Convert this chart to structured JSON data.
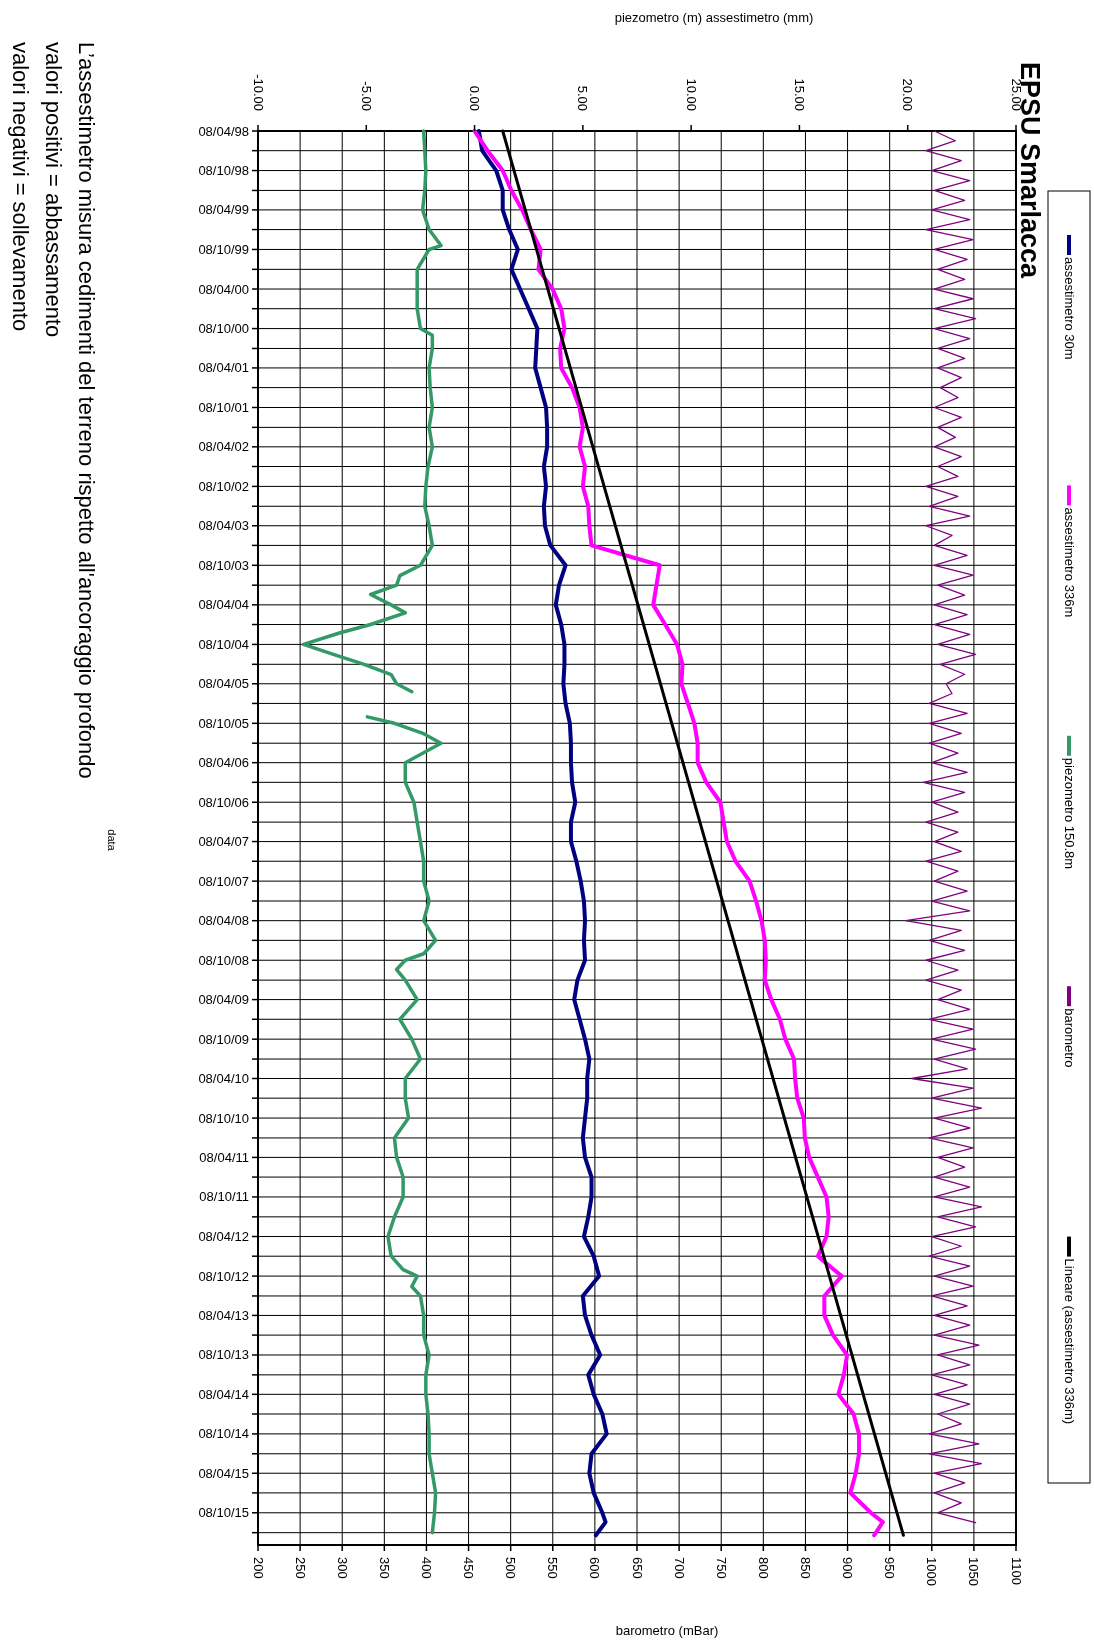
{
  "chart_data": {
    "type": "line",
    "orientation": "horizontal",
    "title": "EPSU Smarlacca",
    "x2label": "piezometro (m) assestimetro (mm)",
    "xlabel": "barometro (mBar)",
    "annotations": [
      "L’assestimetro misura cedimenti  del terreno rispetto all'ancoraggio  profondo",
      "valori positivi = abbassamento",
      "valori negativi = sollevamento",
      "data"
    ],
    "ylim": [
      "2016-03-05",
      "1998-04-08"
    ],
    "yticks": [
      {
        "value": "1998-04-08",
        "label": "08/04/98"
      },
      {
        "value": "1998-07-08",
        "label": null
      },
      {
        "value": "1998-10-08",
        "label": "08/10/98"
      },
      {
        "value": "1999-01-08",
        "label": null
      },
      {
        "value": "1999-04-08",
        "label": "08/04/99"
      },
      {
        "value": "1999-07-08",
        "label": null
      },
      {
        "value": "1999-10-08",
        "label": "08/10/99"
      },
      {
        "value": "2000-01-08",
        "label": null
      },
      {
        "value": "2000-04-08",
        "label": "08/04/00"
      },
      {
        "value": "2000-07-08",
        "label": null
      },
      {
        "value": "2000-10-08",
        "label": "08/10/00"
      },
      {
        "value": "2001-01-08",
        "label": null
      },
      {
        "value": "2001-04-08",
        "label": "08/04/01"
      },
      {
        "value": "2001-07-08",
        "label": null
      },
      {
        "value": "2001-10-08",
        "label": "08/10/01"
      },
      {
        "value": "2002-01-08",
        "label": null
      },
      {
        "value": "2002-04-08",
        "label": "08/04/02"
      },
      {
        "value": "2002-07-08",
        "label": null
      },
      {
        "value": "2002-10-08",
        "label": "08/10/02"
      },
      {
        "value": "2003-01-08",
        "label": null
      },
      {
        "value": "2003-04-08",
        "label": "08/04/03"
      },
      {
        "value": "2003-07-08",
        "label": null
      },
      {
        "value": "2003-10-08",
        "label": "08/10/03"
      },
      {
        "value": "2004-01-08",
        "label": null
      },
      {
        "value": "2004-04-08",
        "label": "08/04/04"
      },
      {
        "value": "2004-07-08",
        "label": null
      },
      {
        "value": "2004-10-08",
        "label": "08/10/04"
      },
      {
        "value": "2005-01-08",
        "label": null
      },
      {
        "value": "2005-04-08",
        "label": "08/04/05"
      },
      {
        "value": "2005-07-08",
        "label": null
      },
      {
        "value": "2005-10-08",
        "label": "08/10/05"
      },
      {
        "value": "2006-01-08",
        "label": null
      },
      {
        "value": "2006-04-08",
        "label": "08/04/06"
      },
      {
        "value": "2006-07-08",
        "label": null
      },
      {
        "value": "2006-10-08",
        "label": "08/10/06"
      },
      {
        "value": "2007-01-08",
        "label": null
      },
      {
        "value": "2007-04-08",
        "label": "08/04/07"
      },
      {
        "value": "2007-07-08",
        "label": null
      },
      {
        "value": "2007-10-08",
        "label": "08/10/07"
      },
      {
        "value": "2008-01-08",
        "label": null
      },
      {
        "value": "2008-04-08",
        "label": "08/04/08"
      },
      {
        "value": "2008-07-08",
        "label": null
      },
      {
        "value": "2008-10-08",
        "label": "08/10/08"
      },
      {
        "value": "2009-01-08",
        "label": null
      },
      {
        "value": "2009-04-08",
        "label": "08/04/09"
      },
      {
        "value": "2009-07-08",
        "label": null
      },
      {
        "value": "2009-10-08",
        "label": "08/10/09"
      },
      {
        "value": "2010-01-08",
        "label": null
      },
      {
        "value": "2010-04-08",
        "label": "08/04/10"
      },
      {
        "value": "2010-07-08",
        "label": null
      },
      {
        "value": "2010-10-08",
        "label": "08/10/10"
      },
      {
        "value": "2011-01-08",
        "label": null
      },
      {
        "value": "2011-04-08",
        "label": "08/04/11"
      },
      {
        "value": "2011-07-08",
        "label": null
      },
      {
        "value": "2011-10-08",
        "label": "08/10/11"
      },
      {
        "value": "2012-01-08",
        "label": null
      },
      {
        "value": "2012-04-08",
        "label": "08/04/12"
      },
      {
        "value": "2012-07-08",
        "label": null
      },
      {
        "value": "2012-10-08",
        "label": "08/10/12"
      },
      {
        "value": "2013-01-08",
        "label": null
      },
      {
        "value": "2013-04-08",
        "label": "08/04/13"
      },
      {
        "value": "2013-07-08",
        "label": null
      },
      {
        "value": "2013-10-08",
        "label": "08/10/13"
      },
      {
        "value": "2014-01-08",
        "label": null
      },
      {
        "value": "2014-04-08",
        "label": "08/04/14"
      },
      {
        "value": "2014-07-08",
        "label": null
      },
      {
        "value": "2014-10-08",
        "label": "08/10/14"
      },
      {
        "value": "2015-01-08",
        "label": null
      },
      {
        "value": "2015-04-08",
        "label": "08/04/15"
      },
      {
        "value": "2015-07-08",
        "label": null
      },
      {
        "value": "2015-10-08",
        "label": "08/10/15"
      },
      {
        "value": "2016-01-08",
        "label": null
      }
    ],
    "x2lim": [
      -10,
      25
    ],
    "x2ticks": [
      {
        "value": -10,
        "label": "-10.00"
      },
      {
        "value": -5,
        "label": "-5.00"
      },
      {
        "value": 0,
        "label": "0.00"
      },
      {
        "value": 5,
        "label": "5.00"
      },
      {
        "value": 10,
        "label": "10.00"
      },
      {
        "value": 15,
        "label": "15.00"
      },
      {
        "value": 20,
        "label": "20.00"
      },
      {
        "value": 25,
        "label": "25.00"
      }
    ],
    "xlim": [
      200,
      1100
    ],
    "xticks": [
      200,
      250,
      300,
      350,
      400,
      450,
      500,
      550,
      600,
      650,
      700,
      750,
      800,
      850,
      900,
      950,
      1000,
      1050,
      1100
    ],
    "grid": true,
    "legend": "top",
    "marker": "none",
    "line_style": "solid",
    "x": [
      "1998-04-08",
      "1998-07-08",
      "1998-10-08",
      "1999-01-08",
      "1999-04-08",
      "1999-07-08",
      "1999-10-08",
      "2000-01-08",
      "2000-04-08",
      "2000-07-08",
      "2000-10-08",
      "2001-01-08",
      "2001-04-08",
      "2001-07-08",
      "2001-10-08",
      "2002-01-08",
      "2002-04-08",
      "2002-07-08",
      "2002-10-08",
      "2003-01-08",
      "2003-04-08",
      "2003-07-08",
      "2003-10-08",
      "2004-01-08",
      "2004-04-08",
      "2004-07-08",
      "2004-10-08",
      "2005-01-08",
      "2005-04-08",
      "2005-07-08",
      "2005-10-08",
      "2006-01-08",
      "2006-04-08",
      "2006-07-08",
      "2006-10-08",
      "2007-01-08",
      "2007-04-08",
      "2007-07-08",
      "2007-10-08",
      "2008-01-08",
      "2008-04-08",
      "2008-07-08",
      "2008-10-08",
      "2009-01-08",
      "2009-04-08",
      "2009-07-08",
      "2009-10-08",
      "2010-01-08",
      "2010-04-08",
      "2010-07-08",
      "2010-10-08",
      "2011-01-08",
      "2011-04-08",
      "2011-07-08",
      "2011-10-08",
      "2012-01-08",
      "2012-04-08",
      "2012-07-08",
      "2012-10-08",
      "2013-01-08",
      "2013-04-08",
      "2013-07-08",
      "2013-10-08",
      "2014-01-08",
      "2014-04-08",
      "2014-07-08",
      "2014-10-08",
      "2015-01-08",
      "2015-04-08",
      "2015-07-08",
      "2015-10-08",
      "2015-11-20",
      "2016-01-20"
    ],
    "series": [
      {
        "name": "assestimetro 30m",
        "color": "#000080",
        "axis": "x2",
        "values": [
          0.2,
          0.35,
          1.0,
          1.3,
          1.3,
          1.6,
          2.0,
          1.7,
          2.1,
          2.5,
          2.9,
          2.85,
          2.8,
          3.05,
          3.3,
          3.35,
          3.35,
          3.2,
          3.3,
          3.2,
          3.25,
          3.5,
          4.2,
          3.9,
          3.75,
          4.0,
          4.15,
          4.15,
          4.1,
          4.2,
          4.4,
          4.45,
          4.45,
          4.5,
          4.65,
          4.45,
          4.45,
          4.7,
          4.9,
          5.05,
          5.1,
          5.05,
          5.1,
          4.75,
          4.6,
          4.85,
          5.1,
          5.3,
          5.2,
          5.2,
          5.1,
          5.0,
          5.1,
          5.4,
          5.4,
          5.25,
          5.05,
          5.5,
          5.75,
          5.0,
          5.1,
          5.4,
          5.8,
          5.25,
          5.5,
          5.9,
          6.1,
          5.4,
          5.3,
          5.5,
          5.9,
          6.05,
          5.6
        ]
      },
      {
        "name": "assestimetro 336m",
        "color": "#ff00ff",
        "axis": "x2",
        "values": [
          0.0,
          0.6,
          1.3,
          1.7,
          2.2,
          2.6,
          3.05,
          2.95,
          3.6,
          4.0,
          4.15,
          3.95,
          4.0,
          4.5,
          4.85,
          5.0,
          4.85,
          5.1,
          5.0,
          5.25,
          5.3,
          5.4,
          8.55,
          8.4,
          8.25,
          8.8,
          9.35,
          9.6,
          9.55,
          9.85,
          10.15,
          10.3,
          10.3,
          10.7,
          11.35,
          11.5,
          11.65,
          12.05,
          12.7,
          13.0,
          13.25,
          13.4,
          13.45,
          13.4,
          13.7,
          14.1,
          14.35,
          14.75,
          14.8,
          14.9,
          15.2,
          15.25,
          15.45,
          15.85,
          16.25,
          16.35,
          16.25,
          15.85,
          16.95,
          16.15,
          16.15,
          16.55,
          17.2,
          17.05,
          16.8,
          17.5,
          17.75,
          17.75,
          17.6,
          17.35,
          18.3,
          18.85,
          18.45
        ]
      },
      {
        "name": "piezometro 150.8m",
        "color": "#339966",
        "axis": "x2",
        "x": [
          "1998-04-08",
          "1998-07-08",
          "1998-10-08",
          "1999-01-08",
          "1999-04-08",
          "1999-07-08",
          "1999-09-20",
          "1999-10-08",
          "2000-01-08",
          "2000-04-08",
          "2000-07-08",
          "2000-10-08",
          "2000-11-08",
          "2001-01-08",
          "2001-04-08",
          "2001-07-08",
          "2001-10-08",
          "2002-01-08",
          "2002-04-08",
          "2002-07-08",
          "2002-10-08",
          "2003-01-08",
          "2003-04-08",
          "2003-07-08",
          "2003-10-08",
          "2003-11-25",
          "2004-01-08",
          "2004-02-20",
          "2004-04-08",
          "2004-05-15",
          "2004-07-08",
          "2004-08-15",
          "2004-10-08",
          "2004-11-25",
          "2005-01-08",
          "2005-02-25",
          "2005-04-08",
          "2005-05-15",
          "2005-07-08",
          "2005-09-08",
          "2005-10-08",
          "2005-11-25",
          "2006-01-08",
          "2006-04-08",
          "2006-07-08",
          "2006-10-08",
          "2007-01-08",
          "2007-04-08",
          "2007-07-08",
          "2007-10-08",
          "2008-01-08",
          "2008-04-08",
          "2008-07-08",
          "2008-09-08",
          "2008-10-08",
          "2008-11-20",
          "2009-01-08",
          "2009-04-08",
          "2009-07-08",
          "2009-10-08",
          "2010-01-08",
          "2010-04-08",
          "2010-07-08",
          "2010-10-08",
          "2011-01-08",
          "2011-04-08",
          "2011-07-08",
          "2011-10-08",
          "2012-01-08",
          "2012-04-08",
          "2012-07-08",
          "2012-09-08",
          "2012-10-08",
          "2012-11-25",
          "2013-01-08",
          "2013-04-08",
          "2013-07-08",
          "2013-10-08",
          "2014-01-08",
          "2014-04-08",
          "2014-07-08",
          "2014-10-08",
          "2015-01-08",
          "2015-04-08",
          "2015-07-08",
          "2015-10-08",
          "2016-01-08"
        ],
        "values": [
          -2.35,
          -2.3,
          -2.25,
          -2.3,
          -2.4,
          -2.1,
          -1.55,
          -2.1,
          -2.65,
          -2.65,
          -2.65,
          -2.5,
          -1.95,
          -1.95,
          -2.1,
          -2.05,
          -1.95,
          -2.1,
          -1.95,
          -2.15,
          -2.25,
          -2.3,
          -2.1,
          -1.95,
          -2.5,
          -3.45,
          -3.6,
          -4.8,
          -3.85,
          -3.2,
          -4.8,
          -6.2,
          -7.9,
          -6.45,
          -5.1,
          -3.85,
          -3.6,
          -2.9,
          null,
          -4.95,
          -3.7,
          -2.35,
          -1.55,
          -3.2,
          -3.2,
          -2.8,
          -2.65,
          -2.5,
          -2.35,
          -2.35,
          -2.1,
          -2.35,
          -1.8,
          -2.35,
          -3.2,
          -3.6,
          -3.2,
          -2.65,
          -3.45,
          -2.9,
          -2.5,
          -3.2,
          -3.2,
          -3.05,
          -3.7,
          -3.6,
          -3.3,
          -3.3,
          -3.7,
          -4.0,
          -3.85,
          -3.3,
          -2.65,
          -2.9,
          -2.5,
          -2.35,
          -2.35,
          -2.1,
          -2.25,
          -2.25,
          -2.15,
          -2.1,
          -2.1,
          -1.95,
          -1.8,
          -1.85,
          -1.95
        ]
      },
      {
        "name": "barometro",
        "color": "#800080",
        "x": [
          "1998-04-08",
          "1998-05-23",
          "1998-07-08",
          "1998-08-23",
          "1998-10-08",
          "1998-11-23",
          "1999-01-08",
          "1999-02-23",
          "1999-04-08",
          "1999-05-23",
          "1999-07-08",
          "1999-08-23",
          "1999-10-08",
          "1999-11-23",
          "2000-01-08",
          "2000-02-23",
          "2000-04-08",
          "2000-05-23",
          "2000-07-08",
          "2000-08-23",
          "2000-10-08",
          "2000-11-23",
          "2001-01-08",
          "2001-02-23",
          "2001-04-08",
          "2001-05-23",
          "2001-07-08",
          "2001-08-23",
          "2001-10-08",
          "2001-11-23",
          "2002-01-08",
          "2002-02-23",
          "2002-04-08",
          "2002-05-23",
          "2002-07-08",
          "2002-08-23",
          "2002-10-08",
          "2002-11-23",
          "2003-01-08",
          "2003-02-23",
          "2003-04-08",
          "2003-05-23",
          "2003-07-08",
          "2003-08-23",
          "2003-10-08",
          "2003-11-23",
          "2004-01-08",
          "2004-02-23",
          "2004-04-08",
          "2004-05-23",
          "2004-07-08",
          "2004-08-23",
          "2004-10-08",
          "2004-11-23",
          "2005-01-08",
          "2005-02-23",
          "2005-04-08",
          "2005-05-23",
          "2005-07-08",
          "2005-08-23",
          "2005-10-08",
          "2005-11-23",
          "2006-01-08",
          "2006-02-23",
          "2006-04-08",
          "2006-05-23",
          "2006-07-08",
          "2006-08-23",
          "2006-10-08",
          "2006-11-23",
          "2007-01-08",
          "2007-02-23",
          "2007-04-08",
          "2007-05-23",
          "2007-07-08",
          "2007-08-23",
          "2007-10-08",
          "2007-11-23",
          "2008-01-08",
          "2008-02-23",
          "2008-04-08",
          "2008-05-23",
          "2008-07-08",
          "2008-08-23",
          "2008-10-08",
          "2008-11-23",
          "2009-01-08",
          "2009-02-23",
          "2009-04-08",
          "2009-05-23",
          "2009-07-08",
          "2009-08-23",
          "2009-10-08",
          "2009-11-23",
          "2010-01-08",
          "2010-02-23",
          "2010-04-08",
          "2010-05-23",
          "2010-07-08",
          "2010-08-23",
          "2010-10-08",
          "2010-11-23",
          "2011-01-08",
          "2011-02-23",
          "2011-04-08",
          "2011-05-23",
          "2011-07-08",
          "2011-08-23",
          "2011-10-08",
          "2011-11-23",
          "2012-01-08",
          "2012-02-23",
          "2012-04-08",
          "2012-05-23",
          "2012-07-08",
          "2012-08-23",
          "2012-10-08",
          "2012-11-23",
          "2013-01-08",
          "2013-02-23",
          "2013-04-08",
          "2013-05-23",
          "2013-07-08",
          "2013-08-23",
          "2013-10-08",
          "2013-11-23",
          "2014-01-08",
          "2014-02-23",
          "2014-04-08",
          "2014-05-23",
          "2014-07-08",
          "2014-08-23",
          "2014-10-08",
          "2014-11-23",
          "2015-01-08",
          "2015-02-23",
          "2015-04-08",
          "2015-05-23",
          "2015-07-08",
          "2015-08-23",
          "2015-10-08",
          "2015-11-23"
        ],
        "values": [
          1003,
          1028,
          993,
          1035,
          1000,
          1045,
          1003,
          1039,
          1000,
          1045,
          993,
          1049,
          1003,
          1042,
          1007,
          1039,
          1003,
          1049,
          1003,
          1052,
          1003,
          1045,
          1007,
          1039,
          1007,
          1035,
          1010,
          1031,
          1003,
          1035,
          1007,
          1028,
          1003,
          1035,
          1007,
          1031,
          993,
          1031,
          997,
          1045,
          993,
          1024,
          1003,
          1042,
          1003,
          1049,
          1007,
          1039,
          1003,
          1042,
          1003,
          1045,
          1007,
          1052,
          1010,
          1039,
          1017,
          1024,
          997,
          1042,
          997,
          1035,
          997,
          1031,
          1000,
          1042,
          990,
          1039,
          1000,
          1031,
          993,
          1031,
          1003,
          1035,
          993,
          1031,
          1003,
          1042,
          1000,
          1045,
          969,
          1035,
          997,
          1039,
          993,
          1031,
          993,
          1035,
          1007,
          1045,
          997,
          1049,
          1000,
          1052,
          1003,
          1042,
          976,
          1049,
          1000,
          1059,
          1003,
          1045,
          997,
          1049,
          1007,
          1039,
          1003,
          1045,
          1003,
          1059,
          1007,
          1052,
          1000,
          1035,
          997,
          1045,
          1003,
          1049,
          1000,
          1042,
          1003,
          1045,
          1003,
          1056,
          1007,
          1045,
          1000,
          1042,
          1003,
          1045,
          1007,
          1035,
          997,
          1056,
          997,
          1059,
          1003,
          1039,
          1003,
          1035,
          1007,
          1052
        ]
      },
      {
        "name": "Lineare (assestimetro 336m)",
        "color": "#000000",
        "axis": "x2",
        "x": [
          "1998-04-08",
          "2016-01-20"
        ],
        "values": [
          1.3,
          19.8
        ]
      }
    ]
  }
}
